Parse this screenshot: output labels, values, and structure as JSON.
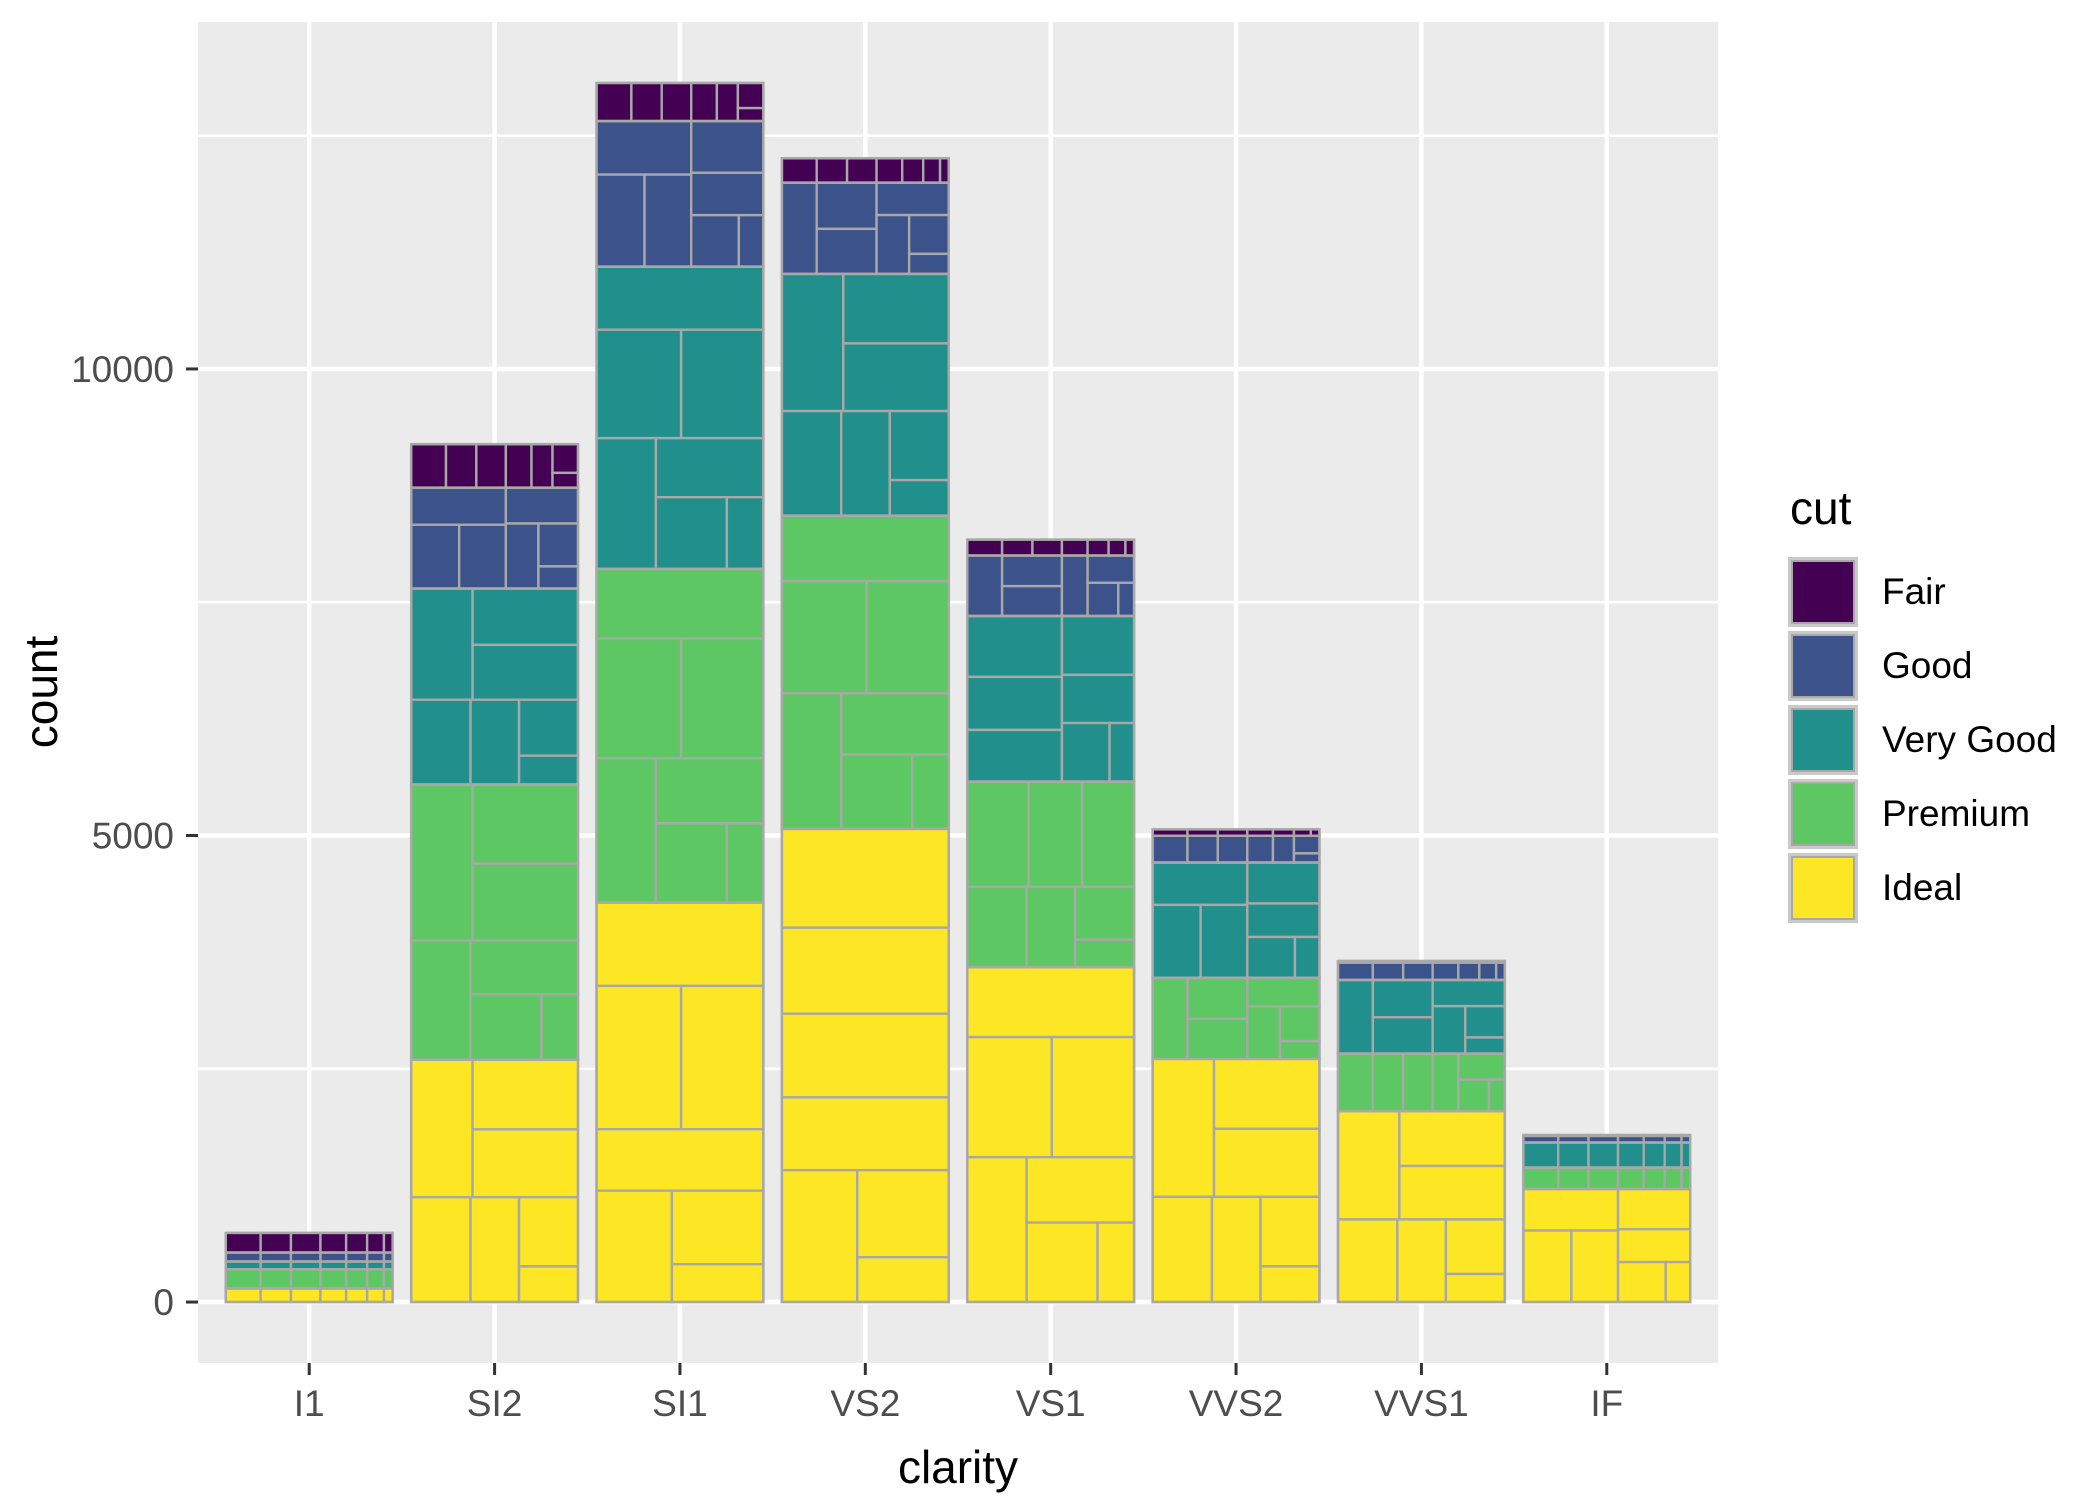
{
  "chart_data": {
    "type": "bar",
    "subtype": "stacked-bar-with-mosaic-subdivisions",
    "title": "",
    "xlabel": "clarity",
    "ylabel": "count",
    "legend_title": "cut",
    "legend_position": "right",
    "categories": [
      "I1",
      "SI2",
      "SI1",
      "VS2",
      "VS1",
      "VVS2",
      "VVS1",
      "IF"
    ],
    "series": [
      {
        "name": "Fair",
        "color": "#440154",
        "values": [
          210,
          466,
          408,
          261,
          170,
          69,
          17,
          9
        ]
      },
      {
        "name": "Good",
        "color": "#3B528B",
        "values": [
          96,
          1081,
          1560,
          978,
          648,
          286,
          186,
          71
        ]
      },
      {
        "name": "Very Good",
        "color": "#21908C",
        "values": [
          84,
          2100,
          3240,
          2591,
          1775,
          1235,
          789,
          268
        ]
      },
      {
        "name": "Premium",
        "color": "#5DC863",
        "values": [
          205,
          2949,
          3575,
          3357,
          1989,
          870,
          616,
          230
        ]
      },
      {
        "name": "Ideal",
        "color": "#FDE725",
        "values": [
          146,
          2598,
          4282,
          5071,
          3589,
          2606,
          2047,
          1212
        ]
      }
    ],
    "stack_bottom_to_top": [
      "Ideal",
      "Premium",
      "Very Good",
      "Good",
      "Fair"
    ],
    "bar_totals": [
      741,
      9194,
      13065,
      12258,
      8171,
      5066,
      3655,
      1790
    ],
    "y_axis": {
      "ticks": [
        0,
        5000,
        10000
      ],
      "minor_ticks": [
        2500,
        7500,
        12500
      ],
      "expansion": 0.05
    },
    "x_axis": {
      "tick_labels": [
        "I1",
        "SI2",
        "SI1",
        "VS2",
        "VS1",
        "VVS2",
        "VVS1",
        "IF"
      ]
    },
    "grid": {
      "major_color": "#FFFFFF",
      "minor_color": "#FFFFFF"
    },
    "panel_background": "#EBEBEB",
    "bar_outline_color": "#A8A8A8",
    "tick_mark_color": "#333333",
    "tick_label_color": "#4D4D4D",
    "mosaic_sub_block_weights_approx": [
      0.209,
      0.182,
      0.177,
      0.154,
      0.126,
      0.101,
      0.052
    ]
  }
}
